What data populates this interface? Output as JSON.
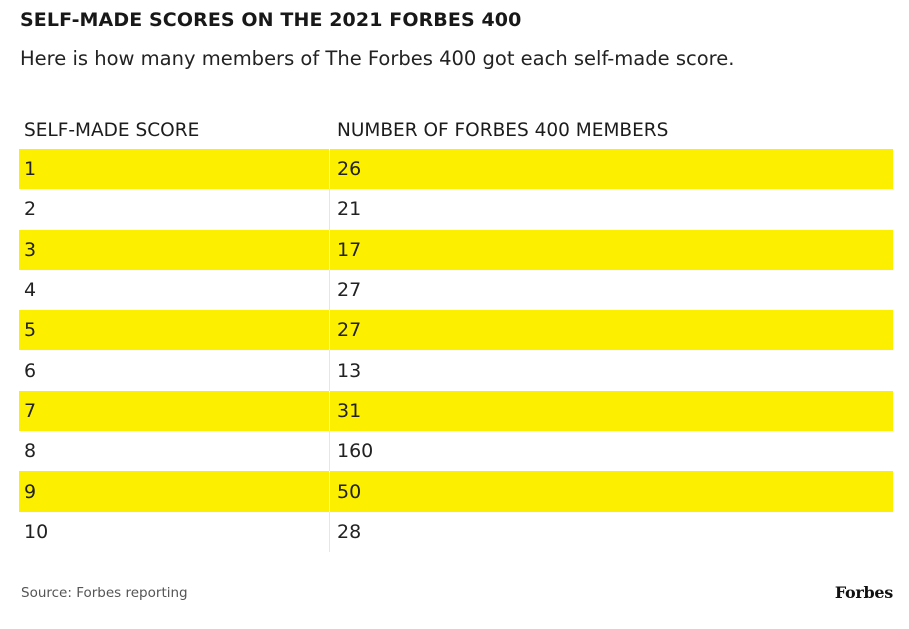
{
  "title": "SELF-MADE SCORES ON THE 2021 FORBES 400",
  "subtitle": "Here is how many members of The Forbes 400 got each self-made score.",
  "colors": {
    "highlight": "#FCF000",
    "text": "#1a1a1a"
  },
  "chart_data": {
    "type": "table",
    "columns": [
      "SELF-MADE SCORE",
      "NUMBER OF FORBES 400 MEMBERS"
    ],
    "rows": [
      [
        "1",
        "26"
      ],
      [
        "2",
        "21"
      ],
      [
        "3",
        "17"
      ],
      [
        "4",
        "27"
      ],
      [
        "5",
        "27"
      ],
      [
        "6",
        "13"
      ],
      [
        "7",
        "31"
      ],
      [
        "8",
        "160"
      ],
      [
        "9",
        "50"
      ],
      [
        "10",
        "28"
      ]
    ]
  },
  "footer": {
    "source": "Source: Forbes reporting",
    "brand": "Forbes"
  }
}
